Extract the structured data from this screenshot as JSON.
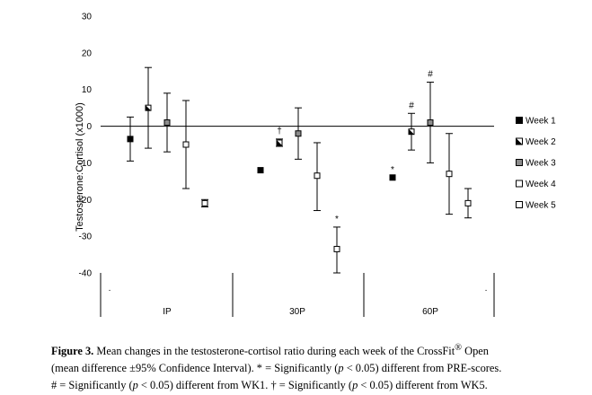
{
  "chart_data": {
    "type": "scatter",
    "title": "",
    "xlabel": "",
    "ylabel": "Testosterone:Cortisol (x1000)",
    "ylim": [
      -40,
      30
    ],
    "yticks": [
      30,
      20,
      10,
      0,
      -10,
      -20,
      -30,
      -40
    ],
    "grid": false,
    "legend_position": "right",
    "categories": [
      "IP",
      "30P",
      "60P"
    ],
    "series": [
      {
        "name": "Week 1",
        "marker": "filled-square",
        "values": [
          -3.5,
          -12,
          -14
        ],
        "ci_low": [
          -9.5,
          null,
          null
        ],
        "ci_high": [
          2.5,
          null,
          null
        ]
      },
      {
        "name": "Week 2",
        "marker": "half-filled-square",
        "values": [
          5,
          -4.5,
          -1.5
        ],
        "ci_low": [
          -6,
          -5.5,
          -6.5
        ],
        "ci_high": [
          16,
          -3.5,
          3.5
        ]
      },
      {
        "name": "Week 3",
        "marker": "gray-square",
        "values": [
          1,
          -2,
          1
        ],
        "ci_low": [
          -7,
          -9,
          -10
        ],
        "ci_high": [
          9,
          5,
          12
        ]
      },
      {
        "name": "Week 4",
        "marker": "open-square",
        "values": [
          -5,
          -13.5,
          -13
        ],
        "ci_low": [
          -17,
          -23,
          -24
        ],
        "ci_high": [
          7,
          -4.5,
          -2
        ]
      },
      {
        "name": "Week 5",
        "marker": "open-square",
        "values": [
          -21,
          -33.5,
          -21
        ],
        "ci_low": [
          -22,
          -40,
          -25
        ],
        "ci_high": [
          -20,
          -27.5,
          -17
        ]
      }
    ],
    "annotations": [
      {
        "text": "†",
        "group": 1,
        "series": 1
      },
      {
        "text": "*",
        "group": 1,
        "series": 4
      },
      {
        "text": "*",
        "group": 2,
        "series": 0
      },
      {
        "text": "#",
        "group": 2,
        "series": 1
      },
      {
        "text": "#",
        "group": 2,
        "series": 2
      }
    ],
    "stray_marks": [
      "·",
      "·"
    ]
  },
  "caption": {
    "label": "Figure 3.",
    "line1_main": " Mean changes in the testosterone-cortisol ratio during each week of the CrossFit",
    "reg": "®",
    "line1_end": " Open",
    "line2": "(mean difference ±95% Confidence Interval). * = Significantly (",
    "p": "p",
    "line2_end": " < 0.05) different from PRE-scores.",
    "line3a": "# = Significantly (",
    "line3b": " < 0.05) different from WK1. † = Significantly (",
    "line3c": " < 0.05) different from WK5."
  }
}
